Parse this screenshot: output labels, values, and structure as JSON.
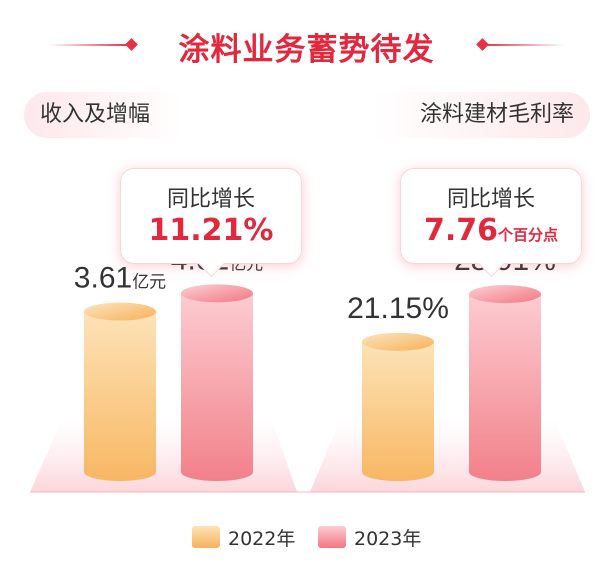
{
  "title": "涂料业务蓄势待发",
  "colors": {
    "accent": "#e3283e",
    "year2022_top": "#fde0b0",
    "year2022_bottom": "#f6b35a",
    "year2023_top": "#fcc6cb",
    "year2023_bottom": "#f27c86"
  },
  "sections": {
    "left": {
      "label": "收入及增幅",
      "callout_label": "同比增长",
      "callout_value": "11.21%",
      "callout_unit": ""
    },
    "right": {
      "label": "涂料建材毛利率",
      "callout_label": "同比增长",
      "callout_value": "7.76",
      "callout_unit": "个百分点"
    }
  },
  "legend": [
    {
      "label": "2022年",
      "color_key": "year2022"
    },
    {
      "label": "2023年",
      "color_key": "year2023"
    }
  ],
  "chart_data": [
    {
      "type": "bar",
      "style": "cylinder",
      "title": "收入及增幅",
      "categories": [
        "2022年",
        "2023年"
      ],
      "values": [
        3.61,
        4.02
      ],
      "value_labels": [
        "3.61",
        "4.02"
      ],
      "unit_label": "亿元",
      "ylim": [
        0,
        4.5
      ],
      "grid": false,
      "legend": "bottom"
    },
    {
      "type": "bar",
      "style": "cylinder",
      "title": "涂料建材毛利率",
      "categories": [
        "2022年",
        "2023年"
      ],
      "values": [
        21.15,
        28.91
      ],
      "value_labels": [
        "21.15%",
        "28.91%"
      ],
      "unit_label": "",
      "ylim": [
        0,
        32.5
      ],
      "grid": false,
      "legend": "bottom"
    }
  ]
}
